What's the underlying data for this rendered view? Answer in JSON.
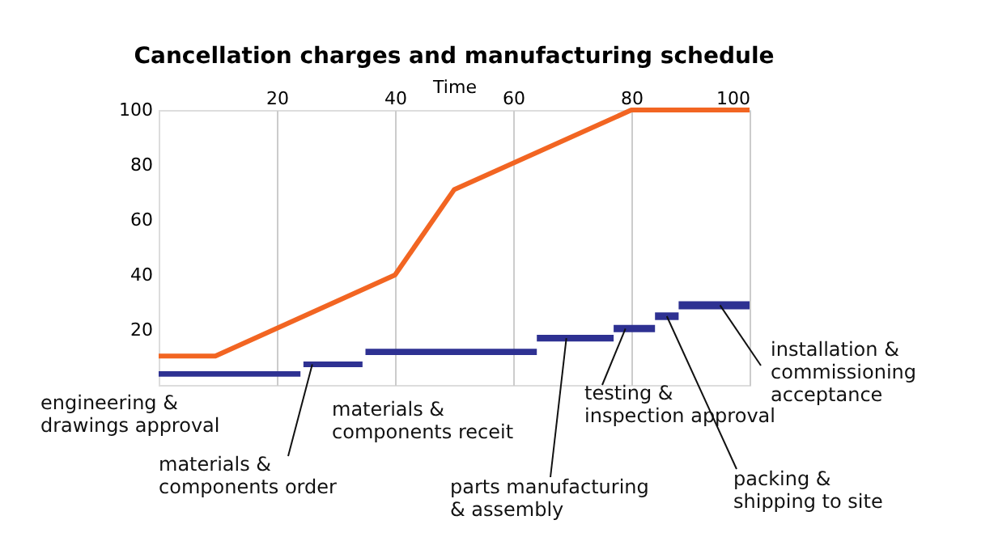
{
  "chart_data": {
    "type": "line",
    "title": "Cancellation charges and manufacturing schedule",
    "xlabel": "Time",
    "xlim": [
      0,
      100
    ],
    "ylim": [
      0,
      100
    ],
    "xticks": [
      20,
      40,
      60,
      80,
      100
    ],
    "yticks": [
      20,
      40,
      60,
      80,
      100
    ],
    "grid": "x",
    "legend": false,
    "marker": "none",
    "line_style": "solid",
    "series": [
      {
        "color": "#f26522",
        "x": [
          0,
          9.6,
          40,
          50,
          80,
          100
        ],
        "values": [
          10.5,
          10.5,
          40,
          71,
          100,
          100
        ]
      },
      {
        "color": "#2e3192",
        "x": [
          0,
          24
        ],
        "values": [
          4,
          4
        ]
      },
      {
        "color": "#2e3192",
        "x": [
          24.5,
          34.5
        ],
        "values": [
          7.5,
          7.5
        ]
      },
      {
        "color": "#2e3192",
        "x": [
          35,
          64
        ],
        "values": [
          12,
          12
        ]
      },
      {
        "color": "#2e3192",
        "x": [
          64,
          77
        ],
        "values": [
          17,
          17
        ]
      },
      {
        "color": "#2e3192",
        "x": [
          77,
          84
        ],
        "values": [
          20.5,
          20.5
        ]
      },
      {
        "color": "#2e3192",
        "x": [
          84,
          88
        ],
        "values": [
          25,
          25
        ]
      },
      {
        "color": "#2e3192",
        "x": [
          88,
          100
        ],
        "values": [
          29,
          29
        ]
      }
    ],
    "annotations": [
      "engineering &\ndrawings approval",
      {
        "text": "materials &\ncomponents order",
        "x": 26,
        "y": 7.5
      },
      "materials &\ncomponents receit",
      {
        "text": "parts manufacturing\n& assembly",
        "x": 69,
        "y": 17
      },
      {
        "text": "testing &\ninspection approval",
        "x": 79,
        "y": 20.5
      },
      {
        "text": "packing &\nshipping to site",
        "x": 86,
        "y": 25
      },
      {
        "text": "installation &\ncommissioning\nacceptance",
        "x": 95,
        "y": 29
      }
    ]
  }
}
